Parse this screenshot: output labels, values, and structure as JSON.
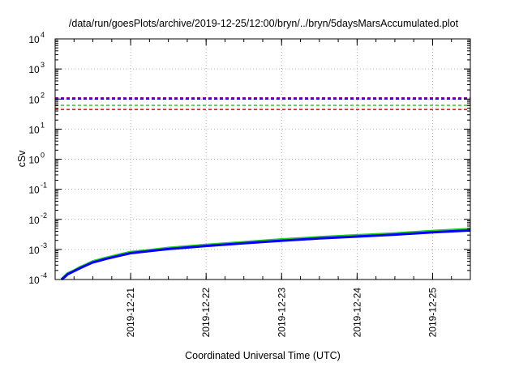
{
  "chart_data": {
    "type": "line",
    "title": "/data/run/goesPlots/archive/2019-12-25/12:00/bryn/../bryn/5daysMarsAccumulated.plot",
    "xlabel": "Coordinated Universal Time (UTC)",
    "ylabel": "cSv",
    "y_scale": "log",
    "ylim": [
      0.0001,
      10000
    ],
    "y_ticks": [
      {
        "value": 0.0001,
        "mantissa": "10",
        "exp": "-4"
      },
      {
        "value": 0.001,
        "mantissa": "10",
        "exp": "-3"
      },
      {
        "value": 0.01,
        "mantissa": "10",
        "exp": "-2"
      },
      {
        "value": 0.1,
        "mantissa": "10",
        "exp": "-1"
      },
      {
        "value": 1,
        "mantissa": "10",
        "exp": "0"
      },
      {
        "value": 10,
        "mantissa": "10",
        "exp": "1"
      },
      {
        "value": 100,
        "mantissa": "10",
        "exp": "2"
      },
      {
        "value": 1000,
        "mantissa": "10",
        "exp": "3"
      },
      {
        "value": 10000,
        "mantissa": "10",
        "exp": "4"
      }
    ],
    "xlim": [
      "2019-12-20 00:00",
      "2019-12-25 12:00"
    ],
    "x_tick_labels": [
      "2019-12-21",
      "2019-12-22",
      "2019-12-23",
      "2019-12-24",
      "2019-12-25"
    ],
    "x_ticks": [
      "2019-12-21 00:00",
      "2019-12-22 00:00",
      "2019-12-23 00:00",
      "2019-12-24 00:00",
      "2019-12-25 00:00"
    ],
    "grid": true,
    "legend": "none",
    "threshold_series": [
      {
        "color": "#a000a0",
        "value": 110,
        "style": "dashed"
      },
      {
        "color": "#0000ff",
        "value": 100,
        "style": "dashed"
      },
      {
        "color": "#22cc22",
        "value": 62,
        "style": "dashed"
      },
      {
        "color": "#ee0000",
        "value": 45,
        "style": "dashed"
      }
    ],
    "series": [
      {
        "color": "#22cc22",
        "x": [
          "2019-12-20 02:00",
          "2019-12-20 03:00",
          "2019-12-20 04:00",
          "2019-12-20 06:00",
          "2019-12-20 08:00",
          "2019-12-20 10:00",
          "2019-12-20 12:00",
          "2019-12-20 16:00",
          "2019-12-20 20:00",
          "2019-12-21 00:00",
          "2019-12-21 06:00",
          "2019-12-21 12:00",
          "2019-12-22 00:00",
          "2019-12-22 12:00",
          "2019-12-23 00:00",
          "2019-12-23 12:00",
          "2019-12-24 00:00",
          "2019-12-24 12:00",
          "2019-12-25 00:00",
          "2019-12-25 12:00"
        ],
        "y": [
          0.0001,
          0.00013,
          0.00016,
          0.0002,
          0.00026,
          0.00032,
          0.0004,
          0.00052,
          0.00066,
          0.00082,
          0.00095,
          0.00112,
          0.00142,
          0.00175,
          0.00215,
          0.00255,
          0.00295,
          0.0034,
          0.0041,
          0.0048
        ]
      },
      {
        "color": "#0000ff",
        "x": [
          "2019-12-20 02:00",
          "2019-12-20 03:00",
          "2019-12-20 04:00",
          "2019-12-20 06:00",
          "2019-12-20 08:00",
          "2019-12-20 10:00",
          "2019-12-20 12:00",
          "2019-12-20 16:00",
          "2019-12-20 20:00",
          "2019-12-21 00:00",
          "2019-12-21 06:00",
          "2019-12-21 12:00",
          "2019-12-22 00:00",
          "2019-12-22 12:00",
          "2019-12-23 00:00",
          "2019-12-23 12:00",
          "2019-12-24 00:00",
          "2019-12-24 12:00",
          "2019-12-25 00:00",
          "2019-12-25 12:00"
        ],
        "y": [
          0.0001,
          0.00012,
          0.00015,
          0.00019,
          0.00024,
          0.0003,
          0.00037,
          0.00048,
          0.0006,
          0.00075,
          0.00088,
          0.00103,
          0.0013,
          0.0016,
          0.00195,
          0.00232,
          0.00268,
          0.0031,
          0.0037,
          0.0043
        ]
      }
    ]
  }
}
